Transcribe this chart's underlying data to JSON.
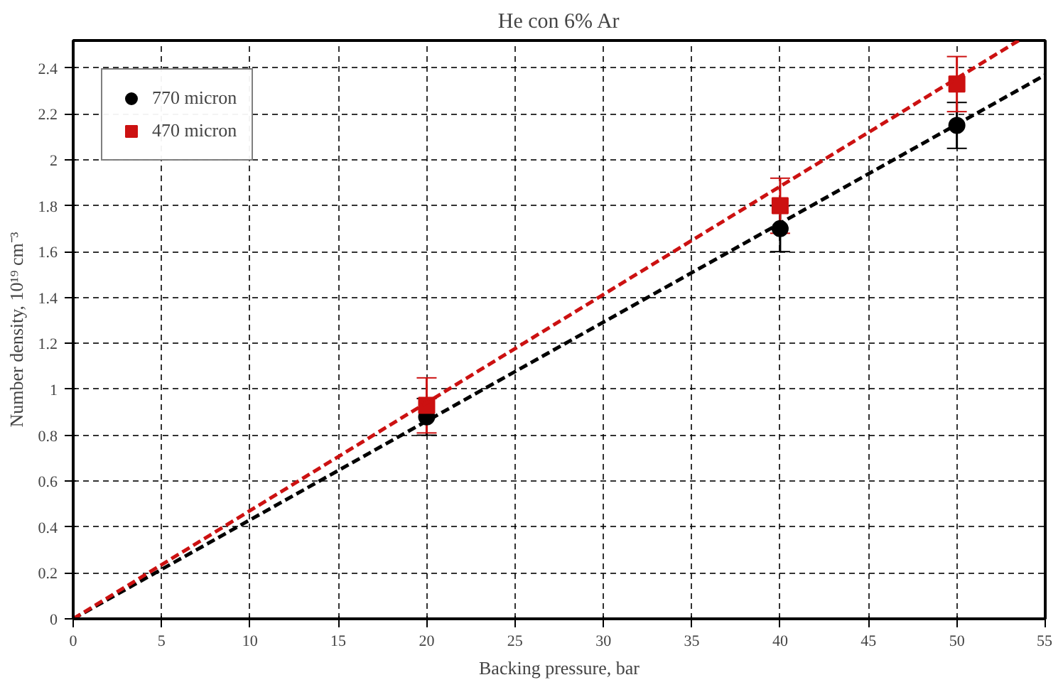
{
  "chart_data": {
    "type": "scatter",
    "title": "He con 6% Ar",
    "xlabel": "Backing pressure, bar",
    "ylabel": "Number density, 10¹⁹ cm⁻³",
    "xlim": [
      0,
      55
    ],
    "ylim": [
      0,
      2.52
    ],
    "xticks": [
      0,
      5,
      10,
      15,
      20,
      25,
      30,
      35,
      40,
      45,
      50,
      55
    ],
    "yticks": [
      0,
      0.2,
      0.4,
      0.6,
      0.8,
      1,
      1.2,
      1.4,
      1.6,
      1.8,
      2,
      2.2,
      2.4
    ],
    "grid": true,
    "legend": "top left",
    "series": [
      {
        "name": "770 micron",
        "color": "#000000",
        "marker": "circle",
        "x": [
          20,
          40,
          50
        ],
        "values": [
          0.88,
          1.7,
          2.15
        ],
        "errors": [
          0.08,
          0.1,
          0.1
        ]
      },
      {
        "name": "470 micron",
        "color": "#cc1111",
        "marker": "square",
        "x": [
          20,
          40,
          50
        ],
        "values": [
          0.93,
          1.8,
          2.33
        ],
        "errors": [
          0.12,
          0.12,
          0.12
        ]
      },
      {
        "type": "line",
        "color": "#000000",
        "line_style": "dashed",
        "x": [
          0,
          55
        ],
        "values": [
          0,
          2.37
        ]
      },
      {
        "type": "line",
        "color": "#cc1111",
        "line_style": "dashed",
        "x": [
          0,
          53.5
        ],
        "values": [
          0,
          2.52
        ]
      }
    ]
  }
}
